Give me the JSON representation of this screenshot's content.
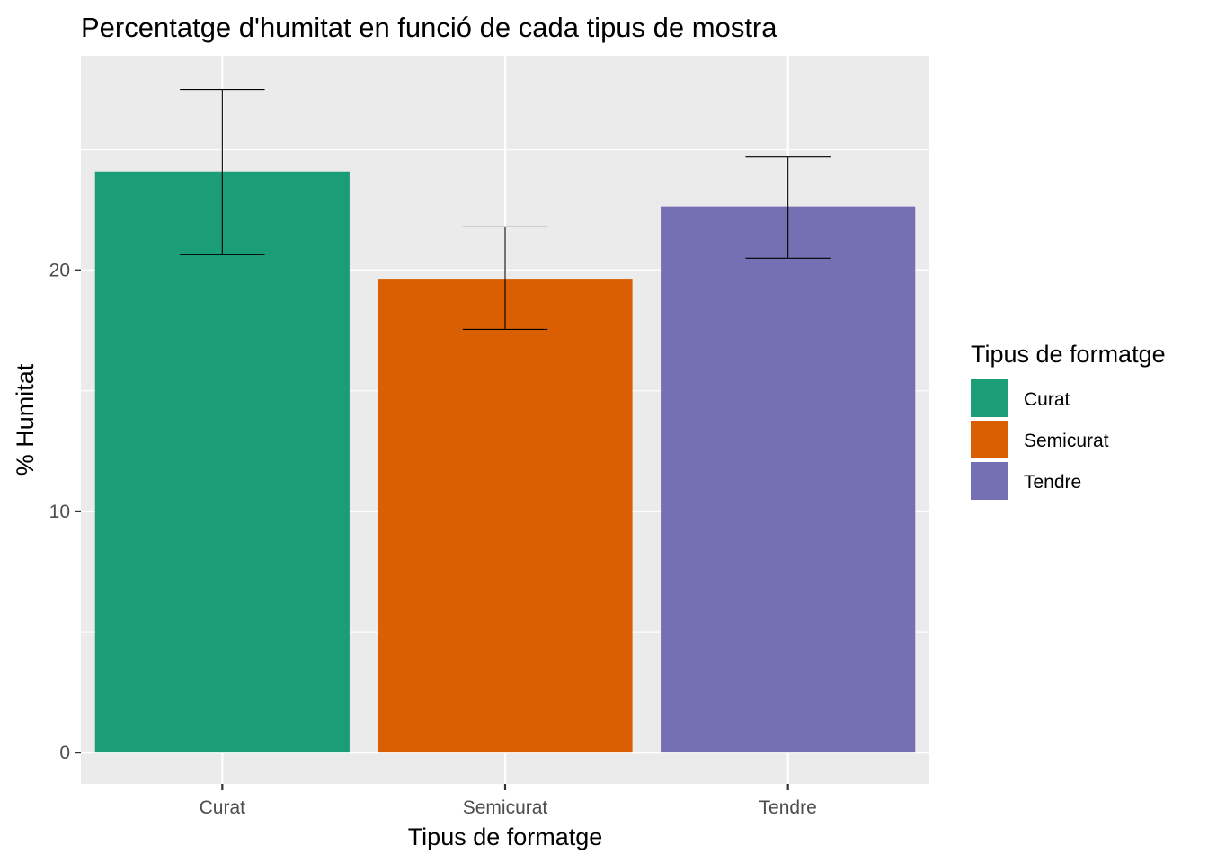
{
  "chart_data": {
    "type": "bar",
    "title": "Percentatge d'humitat en funció de cada tipus de mostra",
    "xlabel": "Tipus de formatge",
    "ylabel": "% Humitat",
    "categories": [
      "Curat",
      "Semicurat",
      "Tendre"
    ],
    "values": [
      24.1,
      19.65,
      22.65
    ],
    "error_low": [
      20.65,
      17.55,
      20.5
    ],
    "error_high": [
      27.5,
      21.8,
      24.7
    ],
    "colors": [
      "#1b9e77",
      "#d95f02",
      "#7570b3"
    ],
    "ylim": [
      -1.3,
      28.9
    ],
    "yticks": [
      0,
      10,
      20
    ],
    "ytick_labels": [
      "0",
      "10",
      "20"
    ],
    "grid": true,
    "legend": {
      "title": "Tipus de formatge",
      "position": "right",
      "entries": [
        "Curat",
        "Semicurat",
        "Tendre"
      ]
    }
  }
}
